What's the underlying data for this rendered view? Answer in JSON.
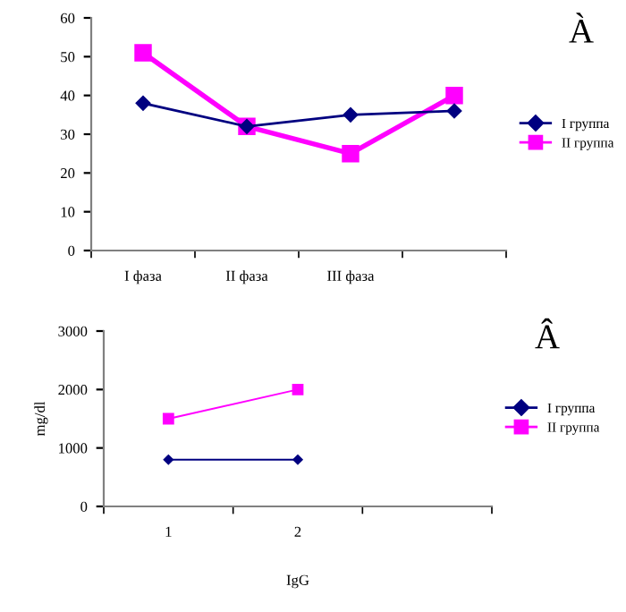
{
  "chart_data": [
    {
      "type": "line",
      "annotations": [
        "À"
      ],
      "categories": [
        "I фаза",
        "II фаза",
        "III фаза",
        null
      ],
      "series": [
        {
          "name": "I группа",
          "color": "#000080",
          "marker": "diamond",
          "values": [
            38,
            32,
            35,
            36
          ]
        },
        {
          "name": "II группа",
          "color": "#ff00ff",
          "marker": "square",
          "values": [
            51,
            32,
            25,
            40
          ]
        }
      ],
      "ylim": [
        0,
        60
      ],
      "yticks": [
        0,
        10,
        20,
        30,
        40,
        50,
        60
      ],
      "legend": "right",
      "grid": false
    },
    {
      "type": "line",
      "annotations": [
        "Â"
      ],
      "xlabel": "IgG",
      "ylabel": "mg/dl",
      "categories": [
        "1",
        "2",
        null
      ],
      "series": [
        {
          "name": "I группа",
          "color": "#000080",
          "marker": "diamond",
          "values": [
            800,
            800,
            null
          ]
        },
        {
          "name": "II группа",
          "color": "#ff00ff",
          "marker": "square",
          "values": [
            1500,
            2000,
            null
          ]
        }
      ],
      "ylim": [
        0,
        3000
      ],
      "yticks": [
        0,
        1000,
        2000,
        3000
      ],
      "legend": "right",
      "grid": false
    }
  ]
}
